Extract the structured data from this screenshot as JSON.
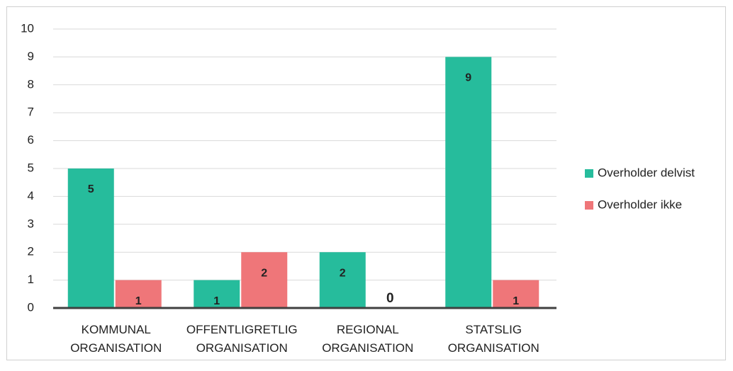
{
  "chart_data": {
    "type": "bar",
    "categories": [
      "KOMMUNAL ORGANISATION",
      "OFFENTLIGRETLIG ORGANISATION",
      "REGIONAL ORGANISATION",
      "STATSLIG ORGANISATION"
    ],
    "series": [
      {
        "name": "Overholder delvist",
        "color": "#26bc9c",
        "values": [
          5,
          1,
          2,
          9
        ]
      },
      {
        "name": "Overholder ikke",
        "color": "#ef7679",
        "values": [
          1,
          2,
          0,
          1
        ]
      }
    ],
    "ylim": [
      0,
      10
    ],
    "yticks": [
      0,
      1,
      2,
      3,
      4,
      5,
      6,
      7,
      8,
      9,
      10
    ],
    "grid": true,
    "legend": "right"
  }
}
